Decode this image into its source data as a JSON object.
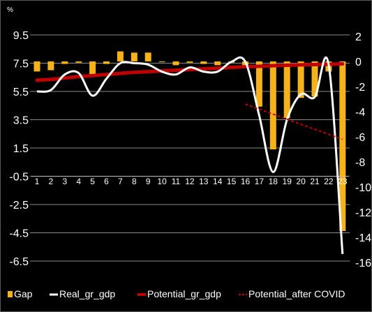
{
  "chart_data": {
    "type": "bar",
    "unit_label": "%",
    "categories": [
      "1",
      "2",
      "3",
      "4",
      "5",
      "6",
      "7",
      "8",
      "9",
      "10",
      "11",
      "12",
      "13",
      "14",
      "15",
      "16",
      "17",
      "18",
      "19",
      "20",
      "21",
      "22",
      "23"
    ],
    "left_axis": {
      "ticks": [
        "9.5",
        "7.5",
        "5.5",
        "3.5",
        "1.5",
        "-0.5",
        "-2.5",
        "-4.5",
        "-6.5"
      ],
      "range": [
        -6.5,
        9.5
      ]
    },
    "right_axis": {
      "ticks": [
        "2",
        "0",
        "-2",
        "-4",
        "-6",
        "-8",
        "-10",
        "-12",
        "-14",
        "-16"
      ],
      "range": [
        -16,
        2
      ]
    },
    "grid": true,
    "legend_position": "bottom",
    "series": [
      {
        "name": "Gap",
        "type": "bar",
        "axis": "right",
        "color": "#f5b21b",
        "values": [
          -0.8,
          -0.7,
          -0.2,
          -0.1,
          -1.1,
          -0.2,
          0.8,
          0.7,
          0.7,
          0.0,
          -0.3,
          -0.1,
          -0.2,
          -0.3,
          -0.1,
          -0.3,
          -3.6,
          -7.0,
          -4.5,
          -2.9,
          -2.8,
          -0.8,
          -13.5
        ]
      },
      {
        "name": "Real_gr_gdp",
        "type": "line",
        "axis": "left",
        "color": "#ffffff",
        "values": [
          5.5,
          5.6,
          6.7,
          6.8,
          5.2,
          6.4,
          7.5,
          7.5,
          7.4,
          6.9,
          6.7,
          7.2,
          6.9,
          6.9,
          7.6,
          7.6,
          3.8,
          -0.2,
          3.5,
          5.3,
          5.1,
          7.4,
          -6.0
        ]
      },
      {
        "name": "Potential_gr_gdp",
        "type": "line",
        "axis": "left",
        "color": "#c00000",
        "values": [
          6.3,
          6.35,
          6.45,
          6.55,
          6.62,
          6.7,
          6.78,
          6.85,
          6.9,
          6.95,
          7.0,
          7.05,
          7.1,
          7.15,
          7.2,
          7.25,
          7.28,
          7.32,
          7.35,
          7.38,
          7.4,
          7.42,
          7.45
        ]
      },
      {
        "name": "Potential_after COVID",
        "type": "line",
        "style": "dashed",
        "axis": "right",
        "color": "#c00000",
        "x": [
          16,
          23
        ],
        "values": [
          -3.4,
          -6.2
        ]
      }
    ]
  }
}
